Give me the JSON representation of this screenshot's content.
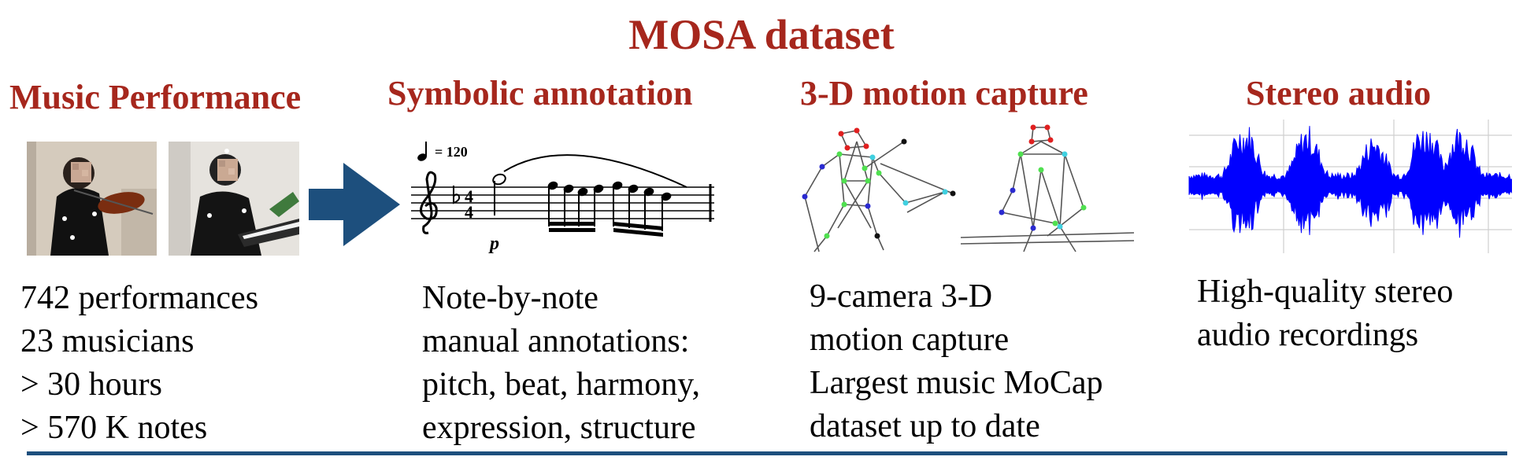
{
  "title": "MOSA dataset",
  "colors": {
    "heading": "#a6271d",
    "arrow": "#1d4f7d",
    "waveform": "#0000ff",
    "rule": "#1d4f7d"
  },
  "sections": [
    {
      "heading": "Music Performance",
      "lines": [
        "742 performances",
        "23 musicians",
        "> 30 hours",
        "> 570 K notes"
      ]
    },
    {
      "heading": "Symbolic annotation",
      "tempo": "= 120",
      "dynamic": "p",
      "lines": [
        "Note-by-note",
        "manual annotations:",
        "pitch, beat, harmony,",
        "expression, structure"
      ]
    },
    {
      "heading": "3-D motion capture",
      "lines": [
        "9-camera 3-D",
        "motion capture",
        "Largest music MoCap",
        "dataset up to date"
      ]
    },
    {
      "heading": "Stereo audio",
      "lines": [
        "High-quality stereo",
        "audio recordings"
      ]
    }
  ],
  "icons": [
    "arrow-right-icon",
    "waveform-icon",
    "music-score-icon",
    "skeleton-icon"
  ]
}
